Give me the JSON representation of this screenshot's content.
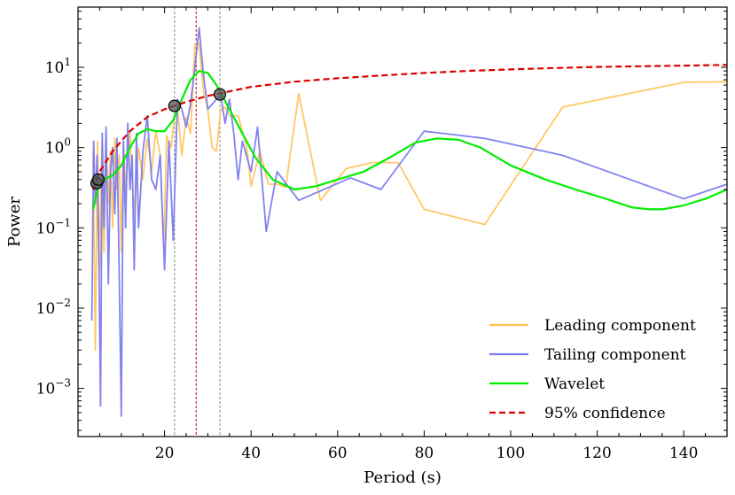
{
  "chart_data": {
    "type": "line",
    "xlabel": "Period (s)",
    "ylabel": "Power",
    "xlim": [
      0,
      150
    ],
    "ylim_log10": [
      -3.6,
      1.75
    ],
    "yscale": "log",
    "x_ticks": [
      {
        "value": 20,
        "label": "20"
      },
      {
        "value": 40,
        "label": "40"
      },
      {
        "value": 60,
        "label": "60"
      },
      {
        "value": 80,
        "label": "80"
      },
      {
        "value": 100,
        "label": "100"
      },
      {
        "value": 120,
        "label": "120"
      },
      {
        "value": 140,
        "label": "140"
      }
    ],
    "y_ticks": [
      {
        "exp": 1,
        "base": "10",
        "power": "1"
      },
      {
        "exp": 0,
        "base": "10",
        "power": "0"
      },
      {
        "exp": -1,
        "base": "10",
        "power": "−1"
      },
      {
        "exp": -2,
        "base": "10",
        "power": "−2"
      },
      {
        "exp": -3,
        "base": "10",
        "power": "−3"
      }
    ],
    "legend_position": "lower-right",
    "series": [
      {
        "name": "Leading component",
        "color": "#ffc04d",
        "style": "solid",
        "points": [
          [
            3.5,
            0.9
          ],
          [
            4,
            0.003
          ],
          [
            4.5,
            1.2
          ],
          [
            5,
            0.03
          ],
          [
            5.5,
            1.0
          ],
          [
            6,
            0.05
          ],
          [
            6.5,
            1.1
          ],
          [
            7,
            0.2
          ],
          [
            7.5,
            0.9
          ],
          [
            8,
            0.1
          ],
          [
            8.5,
            1.3
          ],
          [
            9,
            0.3
          ],
          [
            9.5,
            0.8
          ],
          [
            10,
            0.05
          ],
          [
            10.5,
            1.2
          ],
          [
            11,
            0.3
          ],
          [
            12,
            1.5
          ],
          [
            13,
            0.15
          ],
          [
            14,
            1.0
          ],
          [
            15,
            0.4
          ],
          [
            16,
            1.3
          ],
          [
            17,
            0.5
          ],
          [
            18,
            1.6
          ],
          [
            19,
            0.8
          ],
          [
            19.8,
            0.055
          ],
          [
            20.5,
            1.4
          ],
          [
            21.5,
            1.0
          ],
          [
            22.3,
            2.5
          ],
          [
            23,
            3.0
          ],
          [
            24,
            0.8
          ],
          [
            25,
            2.4
          ],
          [
            26,
            1.5
          ],
          [
            27,
            19.5
          ],
          [
            28,
            19.5
          ],
          [
            29,
            5.0
          ],
          [
            30,
            3.0
          ],
          [
            31,
            1.0
          ],
          [
            32,
            0.9
          ],
          [
            33,
            3.0
          ],
          [
            34,
            3.2
          ],
          [
            35,
            2.5
          ],
          [
            37,
            2.5
          ],
          [
            39,
            1.0
          ],
          [
            40,
            0.33
          ],
          [
            42,
            0.9
          ],
          [
            44,
            0.35
          ],
          [
            46,
            0.35
          ],
          [
            48,
            0.32
          ],
          [
            51,
            4.7
          ],
          [
            56,
            0.22
          ],
          [
            62,
            0.55
          ],
          [
            68,
            0.65
          ],
          [
            74,
            0.65
          ],
          [
            80,
            0.17
          ],
          [
            94,
            0.11
          ],
          [
            112,
            3.2
          ],
          [
            140,
            6.5
          ],
          [
            150,
            6.6
          ]
        ]
      },
      {
        "name": "Tailing component",
        "color": "#7b7bf0",
        "style": "solid",
        "points": [
          [
            3.2,
            0.007
          ],
          [
            3.6,
            1.2
          ],
          [
            4,
            0.2
          ],
          [
            4.4,
            0.8
          ],
          [
            4.8,
            0.05
          ],
          [
            5.2,
            0.0006
          ],
          [
            5.6,
            1.5
          ],
          [
            6,
            0.1
          ],
          [
            6.5,
            1.8
          ],
          [
            7,
            0.02
          ],
          [
            7.5,
            0.5
          ],
          [
            8,
            1.0
          ],
          [
            8.5,
            0.15
          ],
          [
            9,
            1.3
          ],
          [
            9.5,
            0.03
          ],
          [
            10,
            0.00045
          ],
          [
            10.5,
            1.2
          ],
          [
            11,
            0.1
          ],
          [
            11.5,
            2.0
          ],
          [
            12,
            0.3
          ],
          [
            12.5,
            0.8
          ],
          [
            13,
            0.03
          ],
          [
            13.5,
            1.5
          ],
          [
            14,
            0.1
          ],
          [
            15,
            0.9
          ],
          [
            16,
            2.5
          ],
          [
            17,
            0.4
          ],
          [
            18,
            0.3
          ],
          [
            19,
            0.8
          ],
          [
            20,
            0.03
          ],
          [
            21,
            1.2
          ],
          [
            22,
            0.07
          ],
          [
            23,
            4.0
          ],
          [
            24,
            3.0
          ],
          [
            25,
            1.8
          ],
          [
            26,
            3.5
          ],
          [
            27,
            10.0
          ],
          [
            28,
            31.0
          ],
          [
            29,
            8.0
          ],
          [
            30,
            3.0
          ],
          [
            32,
            4.0
          ],
          [
            33,
            4.5
          ],
          [
            34,
            2.0
          ],
          [
            35,
            4.0
          ],
          [
            36,
            1.5
          ],
          [
            37,
            0.4
          ],
          [
            38,
            1.2
          ],
          [
            40,
            0.5
          ],
          [
            41.5,
            1.8
          ],
          [
            43.5,
            0.09
          ],
          [
            46,
            0.5
          ],
          [
            51,
            0.22
          ],
          [
            63,
            0.42
          ],
          [
            70,
            0.3
          ],
          [
            80,
            1.6
          ],
          [
            94,
            1.3
          ],
          [
            112,
            0.8
          ],
          [
            140,
            0.23
          ],
          [
            150,
            0.35
          ]
        ]
      },
      {
        "name": "Wavelet",
        "color": "#00ee00",
        "style": "solid",
        "points": [
          [
            3.5,
            0.17
          ],
          [
            4.5,
            0.3
          ],
          [
            6,
            0.4
          ],
          [
            8,
            0.45
          ],
          [
            10,
            0.6
          ],
          [
            12,
            1.0
          ],
          [
            14,
            1.5
          ],
          [
            16,
            1.7
          ],
          [
            18,
            1.6
          ],
          [
            20,
            1.6
          ],
          [
            22,
            2.2
          ],
          [
            24,
            4.0
          ],
          [
            26,
            7.0
          ],
          [
            28,
            9.0
          ],
          [
            30,
            8.5
          ],
          [
            32,
            6.0
          ],
          [
            35,
            3.0
          ],
          [
            38,
            1.5
          ],
          [
            41,
            0.75
          ],
          [
            45,
            0.4
          ],
          [
            50,
            0.3
          ],
          [
            55,
            0.33
          ],
          [
            60,
            0.4
          ],
          [
            66,
            0.5
          ],
          [
            72,
            0.75
          ],
          [
            78,
            1.15
          ],
          [
            83,
            1.3
          ],
          [
            88,
            1.25
          ],
          [
            93,
            1.0
          ],
          [
            100,
            0.6
          ],
          [
            108,
            0.4
          ],
          [
            115,
            0.3
          ],
          [
            122,
            0.23
          ],
          [
            128,
            0.18
          ],
          [
            132,
            0.17
          ],
          [
            135,
            0.17
          ],
          [
            140,
            0.19
          ],
          [
            145,
            0.23
          ],
          [
            150,
            0.3
          ]
        ]
      },
      {
        "name": "95% confidence",
        "color": "#dd0000",
        "style": "dashed",
        "points": [
          [
            3.5,
            0.3
          ],
          [
            5,
            0.5
          ],
          [
            8,
            0.9
          ],
          [
            12,
            1.6
          ],
          [
            16,
            2.4
          ],
          [
            20,
            3.0
          ],
          [
            25,
            3.7
          ],
          [
            30,
            4.4
          ],
          [
            40,
            5.7
          ],
          [
            50,
            6.6
          ],
          [
            60,
            7.3
          ],
          [
            70,
            7.9
          ],
          [
            80,
            8.5
          ],
          [
            90,
            9.0
          ],
          [
            100,
            9.4
          ],
          [
            110,
            9.8
          ],
          [
            120,
            10.1
          ],
          [
            130,
            10.3
          ],
          [
            140,
            10.5
          ],
          [
            150,
            10.7
          ]
        ]
      }
    ],
    "markers": [
      {
        "x": 4.3,
        "y": 0.36
      },
      {
        "x": 4.7,
        "y": 0.4
      },
      {
        "x": 22.3,
        "y": 3.3
      },
      {
        "x": 32.8,
        "y": 4.6
      }
    ],
    "vlines": [
      {
        "x": 22.3,
        "color": "#888888"
      },
      {
        "x": 27.3,
        "color": "#cc0000"
      },
      {
        "x": 32.8,
        "color": "#888888"
      }
    ]
  }
}
